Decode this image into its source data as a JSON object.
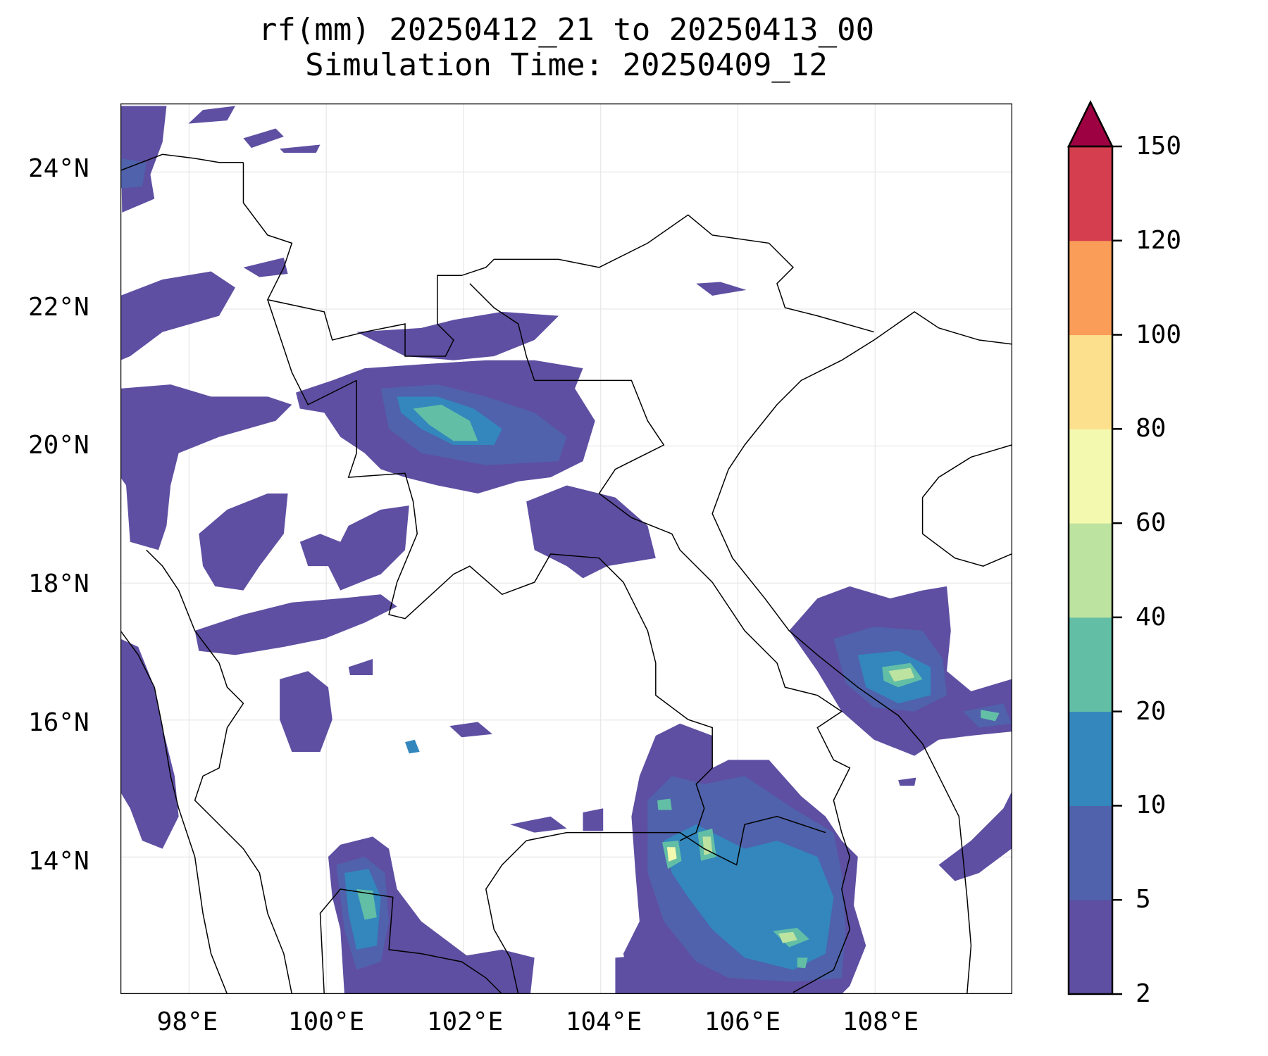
{
  "chart_data": {
    "type": "heatmap",
    "title": "rf(mm) 20250412_21 to 20250413_00",
    "subtitle": "Simulation Time: 20250409_12",
    "xlabel": "",
    "ylabel": "",
    "xlim": [
      97,
      110
    ],
    "ylim": [
      12,
      25
    ],
    "x_ticks": [
      "98°E",
      "100°E",
      "102°E",
      "104°E",
      "106°E",
      "108°E"
    ],
    "x_tick_values": [
      98,
      100,
      102,
      104,
      106,
      108
    ],
    "y_ticks": [
      "24°N",
      "22°N",
      "20°N",
      "18°N",
      "16°N",
      "14°N"
    ],
    "y_tick_values": [
      24,
      22,
      20,
      18,
      16,
      14
    ],
    "grid": true,
    "colorbar": {
      "levels": [
        2,
        5,
        10,
        20,
        40,
        60,
        80,
        100,
        120,
        150
      ],
      "labels": [
        "2",
        "5",
        "10",
        "20",
        "40",
        "60",
        "80",
        "100",
        "120",
        "150"
      ],
      "colors": [
        "#5e4fa2",
        "#4f62ab",
        "#3387bc",
        "#63bea6",
        "#bde3a0",
        "#f3f9ae",
        "#fde08e",
        "#f99d59",
        "#d53e4f"
      ],
      "extend_color": "#9e0142",
      "extend": "max",
      "placement": "right"
    }
  }
}
